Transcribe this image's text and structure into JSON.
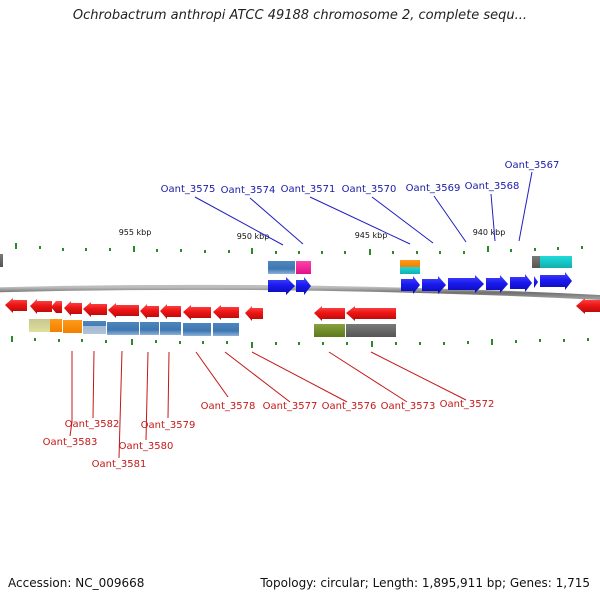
{
  "header": {
    "title": "Ochrobactrum anthropi ATCC 49188 chromosome 2, complete sequ..."
  },
  "footer": {
    "accession": "Accession: NC_009668",
    "topology": "Topology: circular; Length: 1,895,911 bp; Genes: 1,715"
  },
  "scale": {
    "ticks": [
      {
        "label": "955 kbp"
      },
      {
        "label": "950 kbp"
      },
      {
        "label": "945 kbp"
      },
      {
        "label": "940 kbp"
      }
    ]
  },
  "colors": {
    "forward_strand": "#1010ee",
    "reverse_strand": "#ee1010",
    "forward_label": "#1a1aa8",
    "reverse_label": "#c41818",
    "tick": "#2a8a2a",
    "backbone": "#8a8a8a"
  },
  "forward_genes": [
    {
      "label": "Oant_3575"
    },
    {
      "label": "Oant_3574"
    },
    {
      "label": "Oant_3571"
    },
    {
      "label": "Oant_3570"
    },
    {
      "label": "Oant_3569"
    },
    {
      "label": "Oant_3568"
    },
    {
      "label": "Oant_3567"
    }
  ],
  "reverse_genes": [
    {
      "label": "Oant_3583"
    },
    {
      "label": "Oant_3582"
    },
    {
      "label": "Oant_3581"
    },
    {
      "label": "Oant_3580"
    },
    {
      "label": "Oant_3579"
    },
    {
      "label": "Oant_3578"
    },
    {
      "label": "Oant_3577"
    },
    {
      "label": "Oant_3576"
    },
    {
      "label": "Oant_3573"
    },
    {
      "label": "Oant_3572"
    }
  ]
}
